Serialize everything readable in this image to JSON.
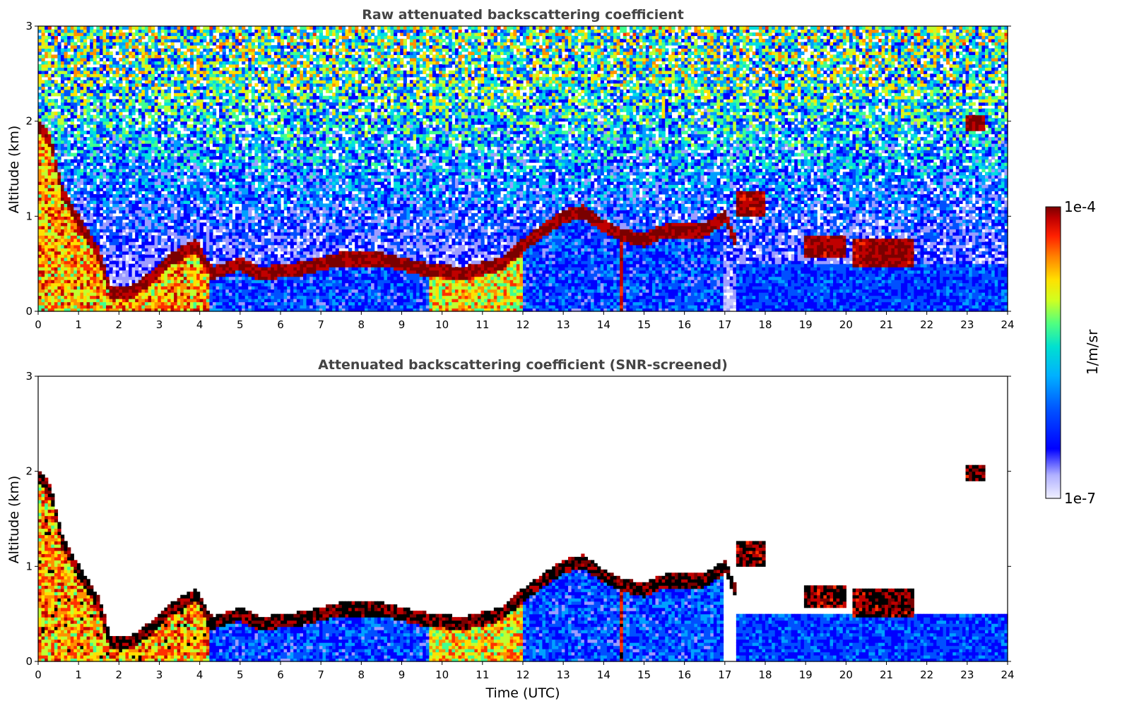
{
  "chart_data": [
    {
      "type": "heatmap",
      "title": "Raw attenuated backscattering coefficient",
      "xlabel": "",
      "ylabel": "Altitude (km)",
      "xlim": [
        0,
        24
      ],
      "ylim": [
        0,
        3
      ],
      "x_ticks": [
        0,
        1,
        2,
        3,
        4,
        5,
        6,
        7,
        8,
        9,
        10,
        11,
        12,
        13,
        14,
        15,
        16,
        17,
        18,
        19,
        20,
        21,
        22,
        23,
        24
      ],
      "y_ticks": [
        0,
        1,
        2,
        3
      ],
      "screened": false
    },
    {
      "type": "heatmap",
      "title": "Attenuated backscattering coefficient (SNR-screened)",
      "xlabel": "Time (UTC)",
      "ylabel": "Altitude (km)",
      "xlim": [
        0,
        24
      ],
      "ylim": [
        0,
        3
      ],
      "x_ticks": [
        0,
        1,
        2,
        3,
        4,
        5,
        6,
        7,
        8,
        9,
        10,
        11,
        12,
        13,
        14,
        15,
        16,
        17,
        18,
        19,
        20,
        21,
        22,
        23,
        24
      ],
      "y_ticks": [
        0,
        1,
        2,
        3
      ],
      "screened": true
    }
  ],
  "colorbar": {
    "max_label": "1e-4",
    "min_label": "1e-7",
    "unit_label": "1/m/sr",
    "scale": "log",
    "colors": [
      "#f0f0ff",
      "#c8c8ff",
      "#9c9cff",
      "#0000ff",
      "#0050ff",
      "#00a0ff",
      "#00e0e0",
      "#40ff90",
      "#c0ff30",
      "#ffe000",
      "#ff9000",
      "#ff3000",
      "#c00000",
      "#7a0000"
    ]
  },
  "features": {
    "boundary_layer_top_km": [
      [
        0,
        1.95
      ],
      [
        0.3,
        1.8
      ],
      [
        0.6,
        1.25
      ],
      [
        1.0,
        0.95
      ],
      [
        1.5,
        0.6
      ],
      [
        1.8,
        0.2
      ],
      [
        2.3,
        0.2
      ],
      [
        2.8,
        0.35
      ],
      [
        3.3,
        0.55
      ],
      [
        3.9,
        0.7
      ],
      [
        4.3,
        0.4
      ],
      [
        5.0,
        0.5
      ],
      [
        5.5,
        0.4
      ],
      [
        6.5,
        0.45
      ],
      [
        7.5,
        0.55
      ],
      [
        8.5,
        0.55
      ],
      [
        9.5,
        0.45
      ],
      [
        10.5,
        0.4
      ],
      [
        11.5,
        0.5
      ],
      [
        12.0,
        0.7
      ],
      [
        12.5,
        0.85
      ],
      [
        13.0,
        1.0
      ],
      [
        13.5,
        1.05
      ],
      [
        14.0,
        0.9
      ],
      [
        14.5,
        0.8
      ],
      [
        15.0,
        0.75
      ],
      [
        15.5,
        0.85
      ],
      [
        16.0,
        0.85
      ],
      [
        16.5,
        0.85
      ],
      [
        17.0,
        1.0
      ],
      [
        17.3,
        0.7
      ]
    ],
    "upper_cloud_segments": [
      {
        "t0": 17.3,
        "t1": 18.0,
        "base_km": 1.0,
        "top_km": 1.25
      },
      {
        "t0": 19.0,
        "t1": 20.0,
        "base_km": 0.55,
        "top_km": 0.8
      },
      {
        "t0": 20.2,
        "t1": 21.7,
        "base_km": 0.45,
        "top_km": 0.75
      },
      {
        "t0": 23.0,
        "t1": 23.4,
        "base_km": 1.9,
        "top_km": 2.05
      }
    ],
    "hot_column_time": 14.45
  }
}
